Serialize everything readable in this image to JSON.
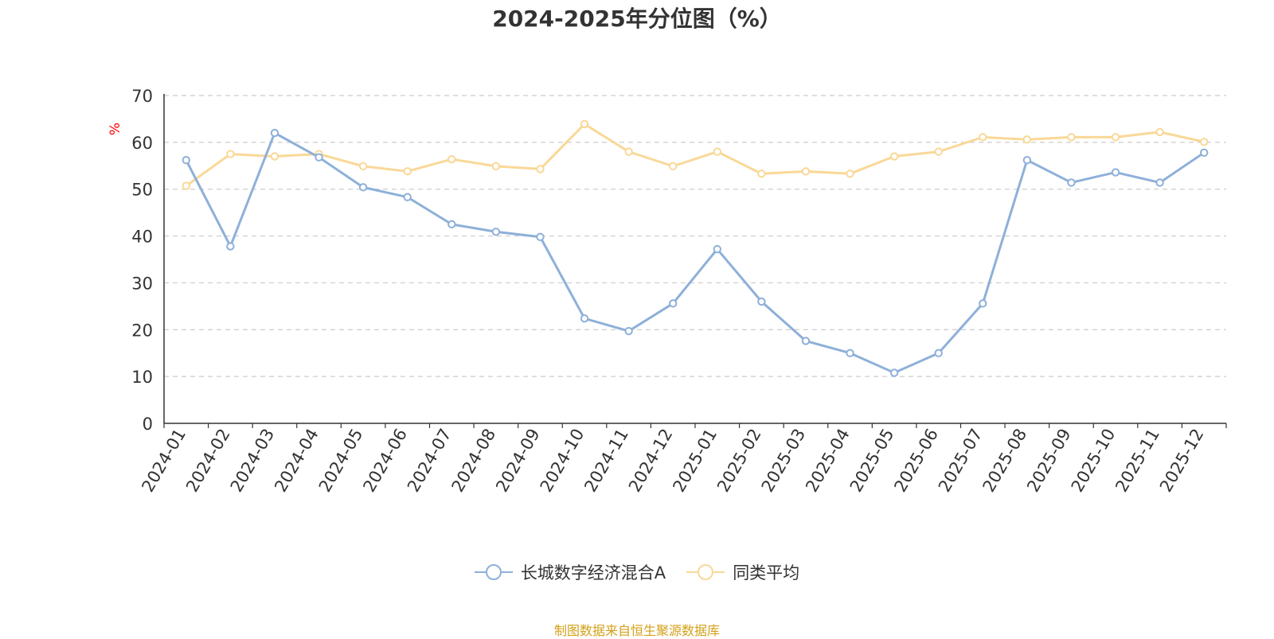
{
  "chart_data": {
    "type": "line",
    "title": "2024-2025年分位图（%）",
    "ylabel": "%",
    "xlabel": "",
    "ylim": [
      0,
      70
    ],
    "yticks": [
      0,
      10,
      20,
      30,
      40,
      50,
      60,
      70
    ],
    "grid": true,
    "legend_position": "bottom-center",
    "categories": [
      "2024-01",
      "2024-02",
      "2024-03",
      "2024-04",
      "2024-05",
      "2024-06",
      "2024-07",
      "2024-08",
      "2024-09",
      "2024-10",
      "2024-11",
      "2024-12",
      "2025-01",
      "2025-02",
      "2025-03",
      "2025-04",
      "2025-05",
      "2025-06",
      "2025-07",
      "2025-08",
      "2025-09",
      "2025-10",
      "2025-11",
      "2025-12"
    ],
    "series": [
      {
        "name": "长城数字经济混合A",
        "color": "#8eb0d9",
        "values": [
          56.2,
          37.8,
          62.0,
          56.8,
          50.4,
          48.3,
          42.5,
          40.9,
          39.8,
          22.4,
          19.7,
          25.6,
          37.2,
          26.0,
          17.6,
          15.0,
          10.8,
          15.0,
          25.6,
          56.2,
          51.4,
          53.6,
          51.4,
          57.8
        ]
      },
      {
        "name": "同类平均",
        "color": "#f9d897",
        "values": [
          50.7,
          57.5,
          57.0,
          57.5,
          54.9,
          53.8,
          56.4,
          54.9,
          54.3,
          63.9,
          58.0,
          54.9,
          58.0,
          53.3,
          53.8,
          53.3,
          57.0,
          58.0,
          61.1,
          60.6,
          61.1,
          61.1,
          62.2,
          60.1
        ]
      }
    ]
  },
  "source": {
    "text": "制图数据来自恒生聚源数据库",
    "color": "#d4a017"
  },
  "colors": {
    "axis": "#333333",
    "grid": "#cccccc",
    "ylabel": "#ff0000"
  }
}
